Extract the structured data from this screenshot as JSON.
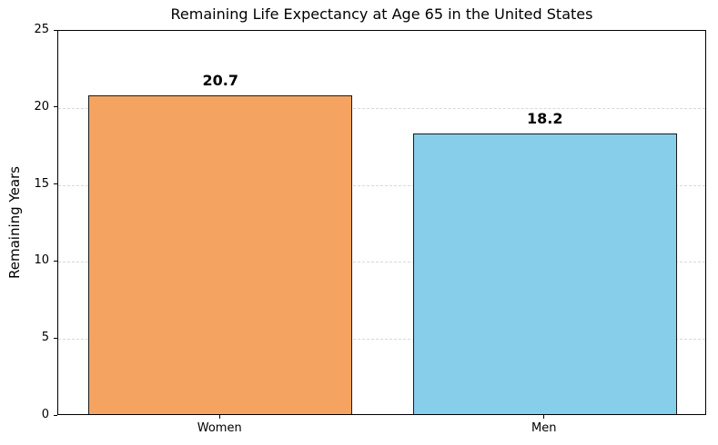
{
  "chart_data": {
    "type": "bar",
    "title": "Remaining Life Expectancy at Age 65 in the United States",
    "categories": [
      "Women",
      "Men"
    ],
    "values": [
      20.7,
      18.2
    ],
    "value_labels": [
      "20.7",
      "18.2"
    ],
    "bar_colors": [
      "#F4A460",
      "#87CEEB"
    ],
    "bar_edge_color": "#1a1a1a",
    "xlabel": "",
    "ylabel": "Remaining Years",
    "ylim": [
      0,
      25
    ],
    "yticks": [
      0,
      5,
      10,
      15,
      20,
      25
    ],
    "grid": "horizontal-dashed",
    "grid_color": "#d8d8d8",
    "legend": "none",
    "background": "#ffffff"
  }
}
